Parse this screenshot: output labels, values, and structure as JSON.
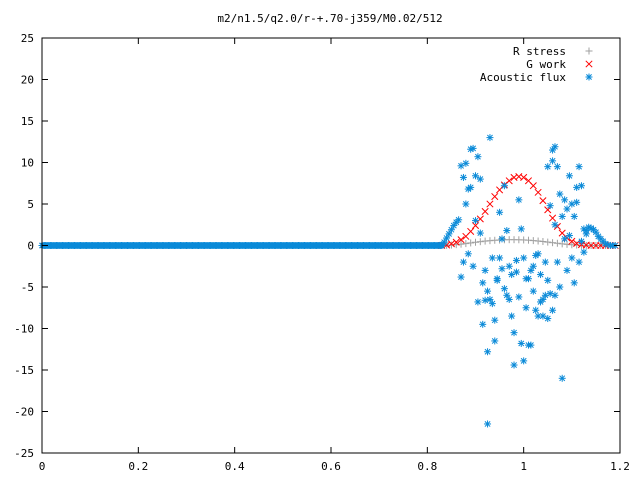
{
  "chart_data": {
    "type": "scatter",
    "title": "m2/n1.5/q2.0/r-+.70-j359/M0.02/512",
    "xlabel": "",
    "ylabel": "",
    "xlim": [
      0,
      1.2
    ],
    "ylim": [
      -25,
      25
    ],
    "x_ticks": [
      0,
      0.2,
      0.4,
      0.6,
      0.8,
      1,
      1.2
    ],
    "x_tick_labels": [
      "0",
      "0.2",
      "0.4",
      "0.6",
      "0.8",
      "1",
      "1.2"
    ],
    "y_ticks": [
      -25,
      -20,
      -15,
      -10,
      -5,
      0,
      5,
      10,
      15,
      20,
      25
    ],
    "y_tick_labels": [
      "-25",
      "-20",
      "-15",
      "-10",
      "-5",
      "0",
      "5",
      "10",
      "15",
      "20",
      "25"
    ],
    "grid": false,
    "legend_position": "top-right",
    "series": [
      {
        "name": "R stress",
        "marker": "plus",
        "color": "#a0a0a0",
        "x": [
          0.83,
          0.84,
          0.85,
          0.86,
          0.87,
          0.88,
          0.89,
          0.9,
          0.91,
          0.92,
          0.93,
          0.94,
          0.95,
          0.96,
          0.97,
          0.98,
          0.99,
          1.0,
          1.01,
          1.02,
          1.03,
          1.04,
          1.05,
          1.06,
          1.07,
          1.08,
          1.09,
          1.1,
          1.11,
          1.12,
          1.13,
          1.14,
          1.15,
          1.16,
          1.17,
          1.18,
          1.19
        ],
        "y": [
          0,
          0.02,
          0.05,
          0.1,
          0.16,
          0.23,
          0.31,
          0.39,
          0.46,
          0.53,
          0.58,
          0.63,
          0.66,
          0.69,
          0.7,
          0.7,
          0.69,
          0.67,
          0.64,
          0.59,
          0.54,
          0.48,
          0.41,
          0.34,
          0.27,
          0.2,
          0.14,
          0.09,
          0.05,
          0.02,
          0.01,
          0,
          0,
          0,
          0,
          0,
          0
        ]
      },
      {
        "name": "G work",
        "marker": "cross",
        "color": "#ff0000",
        "x": [
          0.83,
          0.84,
          0.85,
          0.86,
          0.87,
          0.88,
          0.89,
          0.9,
          0.91,
          0.92,
          0.93,
          0.94,
          0.95,
          0.96,
          0.97,
          0.98,
          0.99,
          1.0,
          1.01,
          1.02,
          1.03,
          1.04,
          1.05,
          1.06,
          1.07,
          1.08,
          1.09,
          1.1,
          1.11,
          1.12,
          1.13,
          1.14,
          1.15,
          1.16,
          1.17,
          1.18,
          1.19
        ],
        "y": [
          0,
          0.05,
          0.2,
          0.4,
          0.7,
          1.1,
          1.7,
          2.4,
          3.2,
          4.1,
          5.0,
          5.9,
          6.7,
          7.3,
          7.8,
          8.2,
          8.3,
          8.2,
          7.8,
          7.2,
          6.4,
          5.4,
          4.3,
          3.3,
          2.3,
          1.5,
          0.9,
          0.5,
          0.25,
          0.1,
          0.05,
          0,
          0,
          0,
          0,
          0,
          0
        ]
      },
      {
        "name": "Acoustic flux",
        "marker": "star",
        "color": "#0a8ad8",
        "baseline": {
          "x_from": 0,
          "x_to": 0.83,
          "x_step": 0.0025,
          "y": 0
        },
        "x": [
          0.83,
          0.835,
          0.84,
          0.845,
          0.85,
          0.855,
          0.86,
          0.865,
          0.87,
          0.875,
          0.88,
          0.885,
          0.89,
          0.895,
          0.9,
          0.905,
          0.91,
          0.915,
          0.92,
          0.925,
          0.93,
          0.935,
          0.94,
          0.945,
          0.95,
          0.955,
          0.96,
          0.965,
          0.97,
          0.975,
          0.98,
          0.985,
          0.99,
          0.995,
          1.0,
          1.005,
          1.01,
          1.015,
          1.02,
          1.025,
          1.03,
          1.035,
          1.04,
          1.045,
          1.05,
          1.055,
          1.06,
          1.065,
          1.07,
          1.075,
          1.08,
          1.085,
          1.09,
          1.095,
          1.1,
          1.105,
          1.11,
          1.115,
          1.12,
          1.125,
          1.13,
          1.135,
          1.14,
          1.145,
          1.15,
          1.155,
          1.16,
          1.165,
          1.17,
          1.175,
          1.18,
          1.185,
          1.19,
          0.87,
          0.875,
          0.88,
          0.885,
          0.89,
          0.895,
          0.9,
          0.905,
          0.91,
          0.915,
          0.92,
          0.925,
          0.93,
          0.935,
          0.94,
          0.945,
          0.95,
          0.955,
          0.96,
          0.965,
          0.97,
          0.975,
          0.98,
          0.985,
          0.99,
          0.995,
          1.0,
          1.005,
          1.01,
          1.015,
          1.02,
          1.025,
          1.03,
          1.035,
          1.04,
          1.045,
          1.05,
          1.055,
          1.06,
          1.065,
          1.07,
          1.075,
          1.08,
          1.085,
          1.09,
          1.095,
          1.1,
          1.105,
          1.11,
          1.115,
          1.12,
          1.125,
          1.13,
          0.925,
          1.065,
          1.06,
          1.05
        ],
        "y": [
          0.1,
          0.4,
          0.9,
          1.4,
          1.9,
          2.4,
          2.8,
          3.1,
          9.6,
          8.2,
          9.9,
          6.8,
          11.6,
          11.7,
          8.4,
          10.7,
          8.0,
          -4.5,
          -6.6,
          -12.8,
          13.0,
          -7.0,
          -9.0,
          -4.0,
          -1.5,
          0.8,
          7.2,
          -6.0,
          -2.5,
          -8.5,
          -14.4,
          -3.2,
          5.5,
          -11.8,
          -13.9,
          -4.0,
          -12.0,
          -12.0,
          -2.5,
          -7.8,
          -1.0,
          -6.8,
          -8.5,
          -6.0,
          -4.2,
          -5.8,
          11.5,
          11.9,
          9.5,
          6.2,
          -16.0,
          5.5,
          4.4,
          8.4,
          5.0,
          3.5,
          7.0,
          9.5,
          7.2,
          2.0,
          1.4,
          2.2,
          2.1,
          1.9,
          1.6,
          1.1,
          0.8,
          0.5,
          0.2,
          0.1,
          0,
          0,
          0,
          -3.8,
          -2.0,
          5.0,
          -1.0,
          7.0,
          -2.5,
          3.0,
          -6.8,
          1.5,
          -9.5,
          -3.0,
          -5.5,
          -6.5,
          -1.5,
          -11.5,
          -4.2,
          4.0,
          -2.8,
          -5.2,
          1.8,
          -6.5,
          -3.5,
          -10.5,
          -1.8,
          -6.2,
          2.0,
          -1.5,
          -7.5,
          -4.0,
          -3.0,
          -5.5,
          -1.2,
          -8.5,
          -3.5,
          -6.5,
          -2.0,
          9.5,
          4.8,
          10.2,
          2.5,
          -2.0,
          -5.0,
          3.5,
          0.8,
          -3.0,
          1.2,
          -1.5,
          -4.5,
          5.2,
          -2.0,
          0.5,
          -0.8,
          1.8,
          -21.5,
          -6.0,
          -7.8,
          -8.8
        ]
      }
    ]
  }
}
